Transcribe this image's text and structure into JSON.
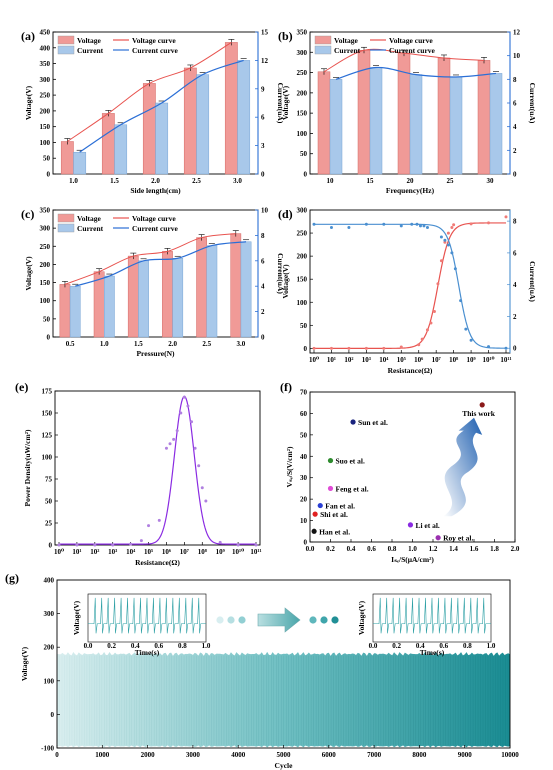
{
  "colors": {
    "voltage": "#e8534f",
    "voltage_bar": "#f09a97",
    "current": "#2b6fd6",
    "current_bar": "#a8c8ea",
    "scatter": "#f07a76",
    "teal": "#2ea0a5",
    "purple": "#8a2be2"
  },
  "chart_data": [
    {
      "label": "(a)",
      "type": "bar",
      "categories": [
        "1.0",
        "1.5",
        "2.0",
        "2.5",
        "3.0"
      ],
      "xlabel": "Side length(cm)",
      "ylabel": "Voltage(V)",
      "y2label": "Current(uA)",
      "ylim": [
        0,
        450
      ],
      "y2lim": [
        0,
        15
      ],
      "yticks": [
        "0",
        "50",
        "100",
        "150",
        "200",
        "250",
        "300",
        "350",
        "400",
        "450"
      ],
      "y2ticks": [
        "0",
        "3",
        "6",
        "9",
        "12",
        "15"
      ],
      "legend": [
        "Voltage",
        "Current",
        "Voltage curve",
        "Current curve"
      ],
      "series": [
        {
          "name": "Voltage",
          "values": [
            103,
            192,
            287,
            336,
            417
          ]
        },
        {
          "name": "Current",
          "values": [
            2.3,
            5.2,
            7.5,
            10.5,
            12.0
          ]
        }
      ]
    },
    {
      "label": "(b)",
      "type": "bar",
      "categories": [
        "10",
        "15",
        "20",
        "25",
        "30"
      ],
      "xlabel": "Frequency(Hz)",
      "ylabel": "Voltage(V)",
      "y2label": "Current(uA)",
      "ylim": [
        0,
        350
      ],
      "y2lim": [
        0,
        12
      ],
      "yticks": [
        "0",
        "50",
        "100",
        "150",
        "200",
        "250",
        "300",
        "350"
      ],
      "y2ticks": [
        "0",
        "2",
        "4",
        "6",
        "8",
        "10",
        "12"
      ],
      "legend": [
        "Voltage",
        "Current",
        "Voltage curve",
        "Current curve"
      ],
      "series": [
        {
          "name": "Voltage",
          "values": [
            252,
            305,
            298,
            286,
            280
          ]
        },
        {
          "name": "Current",
          "values": [
            8.0,
            9.0,
            8.4,
            8.2,
            8.5
          ]
        }
      ]
    },
    {
      "label": "(c)",
      "type": "bar",
      "categories": [
        "0.5",
        "1.0",
        "1.5",
        "2.0",
        "2.5",
        "3.0"
      ],
      "xlabel": "Pressure(N)",
      "ylabel": "Voltage(V)",
      "y2label": "Current(uA)",
      "ylim": [
        0,
        350
      ],
      "y2lim": [
        0,
        10
      ],
      "yticks": [
        "0",
        "50",
        "100",
        "150",
        "200",
        "250",
        "300",
        "350"
      ],
      "y2ticks": [
        "0",
        "2",
        "4",
        "6",
        "8",
        "10"
      ],
      "legend": [
        "Voltage",
        "Current",
        "Voltage curve",
        "Current curve"
      ],
      "series": [
        {
          "name": "Voltage",
          "values": [
            145,
            180,
            223,
            236,
            274,
            285
          ]
        },
        {
          "name": "Current",
          "values": [
            4.0,
            4.8,
            6.0,
            6.2,
            7.2,
            7.5
          ]
        }
      ]
    },
    {
      "label": "(d)",
      "type": "scatter",
      "xlabel": "Resistance(Ω)",
      "ylabel": "Voltage(V)",
      "y2label": "Current(uA)",
      "xticks": [
        "10⁰",
        "10¹",
        "10²",
        "10³",
        "10⁴",
        "10⁵",
        "10⁶",
        "10⁷",
        "10⁸",
        "10⁹",
        "10¹⁰",
        "10¹¹"
      ],
      "ylim": [
        -10,
        300
      ],
      "y2lim": [
        -0.3,
        8.7
      ],
      "yticks": [
        "0",
        "50",
        "100",
        "150",
        "200",
        "250",
        "300"
      ],
      "y2ticks": [
        "0",
        "2",
        "4",
        "6",
        "8"
      ],
      "voltage_points": [
        [
          0,
          0
        ],
        [
          1,
          0
        ],
        [
          2,
          0
        ],
        [
          3,
          0
        ],
        [
          4,
          0
        ],
        [
          5,
          3
        ],
        [
          6,
          8
        ],
        [
          6.2,
          20
        ],
        [
          6.5,
          40
        ],
        [
          6.7,
          55
        ],
        [
          6.9,
          80
        ],
        [
          7.1,
          140
        ],
        [
          7.3,
          190
        ],
        [
          7.5,
          230
        ],
        [
          7.7,
          250
        ],
        [
          7.9,
          262
        ],
        [
          8,
          268
        ],
        [
          9,
          270
        ],
        [
          10,
          272
        ],
        [
          11,
          285
        ]
      ],
      "current_points": [
        [
          0,
          7.8
        ],
        [
          1,
          7.6
        ],
        [
          2,
          7.6
        ],
        [
          3,
          7.8
        ],
        [
          4,
          7.8
        ],
        [
          5,
          7.7
        ],
        [
          5.6,
          7.8
        ],
        [
          5.9,
          7.8
        ],
        [
          6.1,
          7.7
        ],
        [
          6.3,
          7.7
        ],
        [
          6.5,
          7.6
        ],
        [
          7.3,
          7.0
        ],
        [
          7.5,
          6.8
        ],
        [
          7.7,
          6.5
        ],
        [
          7.9,
          6.0
        ],
        [
          8.1,
          5.0
        ],
        [
          8.4,
          3.0
        ],
        [
          8.7,
          1.2
        ],
        [
          9,
          0.5
        ],
        [
          10,
          0.1
        ],
        [
          11,
          0
        ]
      ]
    },
    {
      "label": "(e)",
      "type": "scatter",
      "xlabel": "Resistance(Ω)",
      "ylabel": "Power Density(uW/cm²)",
      "xticks": [
        "10⁰",
        "10¹",
        "10²",
        "10³",
        "10⁴",
        "10⁵",
        "10⁶",
        "10⁷",
        "10⁸",
        "10⁹",
        "10¹⁰",
        "10¹¹"
      ],
      "ylim": [
        0,
        175
      ],
      "yticks": [
        "0",
        "25",
        "50",
        "75",
        "100",
        "125",
        "150",
        "175"
      ],
      "points": [
        [
          0,
          0
        ],
        [
          1,
          0
        ],
        [
          2,
          0
        ],
        [
          3,
          0
        ],
        [
          4,
          1
        ],
        [
          4.6,
          5
        ],
        [
          5,
          22
        ],
        [
          5.6,
          28
        ],
        [
          6,
          110
        ],
        [
          6.2,
          115
        ],
        [
          6.4,
          120
        ],
        [
          6.6,
          130
        ],
        [
          6.8,
          150
        ],
        [
          7,
          168
        ],
        [
          7.2,
          158
        ],
        [
          7.4,
          140
        ],
        [
          7.6,
          110
        ],
        [
          7.8,
          90
        ],
        [
          8,
          65
        ],
        [
          8.2,
          50
        ],
        [
          9,
          3
        ],
        [
          10,
          0
        ],
        [
          11,
          0
        ]
      ]
    },
    {
      "label": "(f)",
      "type": "scatter",
      "xlabel": "Iₛₑ/S(μA/cm²)",
      "ylabel": "Vₛₑ/S(V/cm²)",
      "xlim": [
        0,
        2.0
      ],
      "ylim": [
        0,
        70
      ],
      "xticks": [
        "0.0",
        "0.2",
        "0.4",
        "0.6",
        "0.8",
        "1.0",
        "1.2",
        "1.4",
        "1.6",
        "1.8",
        "2.0"
      ],
      "yticks": [
        "0",
        "10",
        "20",
        "30",
        "40",
        "50",
        "60",
        "70"
      ],
      "points": [
        {
          "name": "This work",
          "x": 1.68,
          "y": 64,
          "color": "#8b1a1a"
        },
        {
          "name": "Sun et al.",
          "x": 0.42,
          "y": 56,
          "color": "#1a237e"
        },
        {
          "name": "Suo et al.",
          "x": 0.2,
          "y": 38,
          "color": "#2e8b2e"
        },
        {
          "name": "Feng et al.",
          "x": 0.2,
          "y": 25,
          "color": "#e04bd6"
        },
        {
          "name": "Fan et al.",
          "x": 0.1,
          "y": 17,
          "color": "#2a3fd4"
        },
        {
          "name": "Shi et al.",
          "x": 0.05,
          "y": 13,
          "color": "#e02020"
        },
        {
          "name": "Han et al.",
          "x": 0.04,
          "y": 5,
          "color": "#111111"
        },
        {
          "name": "Li et al.",
          "x": 0.98,
          "y": 8,
          "color": "#8a2be2"
        },
        {
          "name": "Roy et al.",
          "x": 1.25,
          "y": 2,
          "color": "#9b30b0"
        }
      ]
    },
    {
      "label": "(g)",
      "type": "area",
      "xlabel": "Cycle",
      "ylabel": "Voltage(V)",
      "xlim": [
        0,
        10000
      ],
      "ylim": [
        -100,
        400
      ],
      "xticks": [
        "0",
        "1000",
        "2000",
        "3000",
        "4000",
        "5000",
        "6000",
        "7000",
        "8000",
        "9000",
        "10000"
      ],
      "yticks": [
        "-100",
        "0",
        "100",
        "200",
        "300",
        "400"
      ],
      "envelope": {
        "upper": 180,
        "lower": -95
      },
      "inset_left": {
        "xlabel": "Time(s)",
        "ylabel": "Voltage(V)",
        "xticks": [
          "0.0",
          "0.2",
          "0.4",
          "0.6",
          "0.8",
          "1.0"
        ]
      },
      "inset_right": {
        "xlabel": "Time(s)",
        "ylabel": "Voltage(V)",
        "xticks": [
          "0.0",
          "0.2",
          "0.4",
          "0.6",
          "0.8",
          "1.0"
        ]
      }
    }
  ]
}
